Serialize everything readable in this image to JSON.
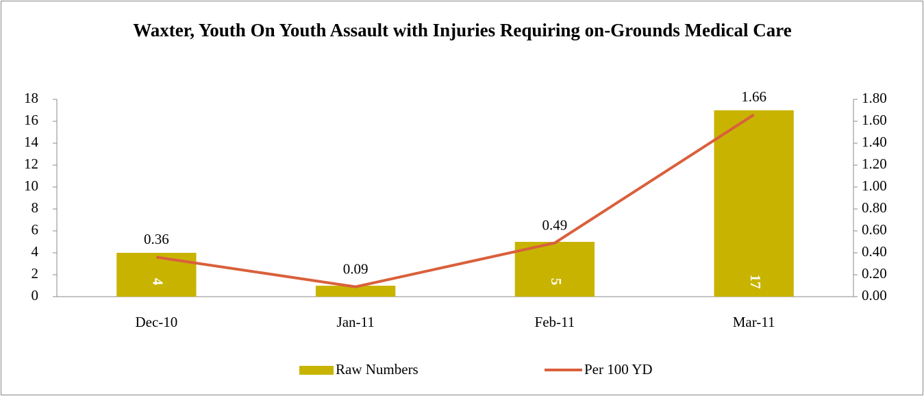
{
  "chart_data": {
    "type": "bar_line",
    "title": "Waxter, Youth On Youth Assault with Injuries Requiring on-Grounds Medical Care",
    "categories": [
      "Dec-10",
      "Jan-11",
      "Feb-11",
      "Mar-11"
    ],
    "series": [
      {
        "name": "Raw Numbers",
        "type": "bar",
        "color": "#c8b400",
        "values": [
          4,
          1,
          5,
          17
        ]
      },
      {
        "name": "Per 100 YD",
        "type": "line",
        "axis": "y2",
        "color": "#d9603b",
        "values": [
          0.36,
          0.09,
          0.49,
          1.66
        ]
      }
    ],
    "ylim": [
      0,
      18
    ],
    "yticks": [
      0,
      2,
      4,
      6,
      8,
      10,
      12,
      14,
      16,
      18
    ],
    "y2lim": [
      0,
      1.8
    ],
    "y2ticks": [
      {
        "value": 0,
        "label": "0.00"
      },
      {
        "value": 0.2,
        "label": "0.20"
      },
      {
        "value": 0.4,
        "label": "0.40"
      },
      {
        "value": 0.6,
        "label": "0.60"
      },
      {
        "value": 0.8,
        "label": "0.80"
      },
      {
        "value": 1.0,
        "label": "1.00"
      },
      {
        "value": 1.2,
        "label": "1.20"
      },
      {
        "value": 1.4,
        "label": "1.40"
      },
      {
        "value": 1.6,
        "label": "1.60"
      },
      {
        "value": 1.8,
        "label": "1.80"
      }
    ],
    "legend": "bottom",
    "grid": false
  }
}
